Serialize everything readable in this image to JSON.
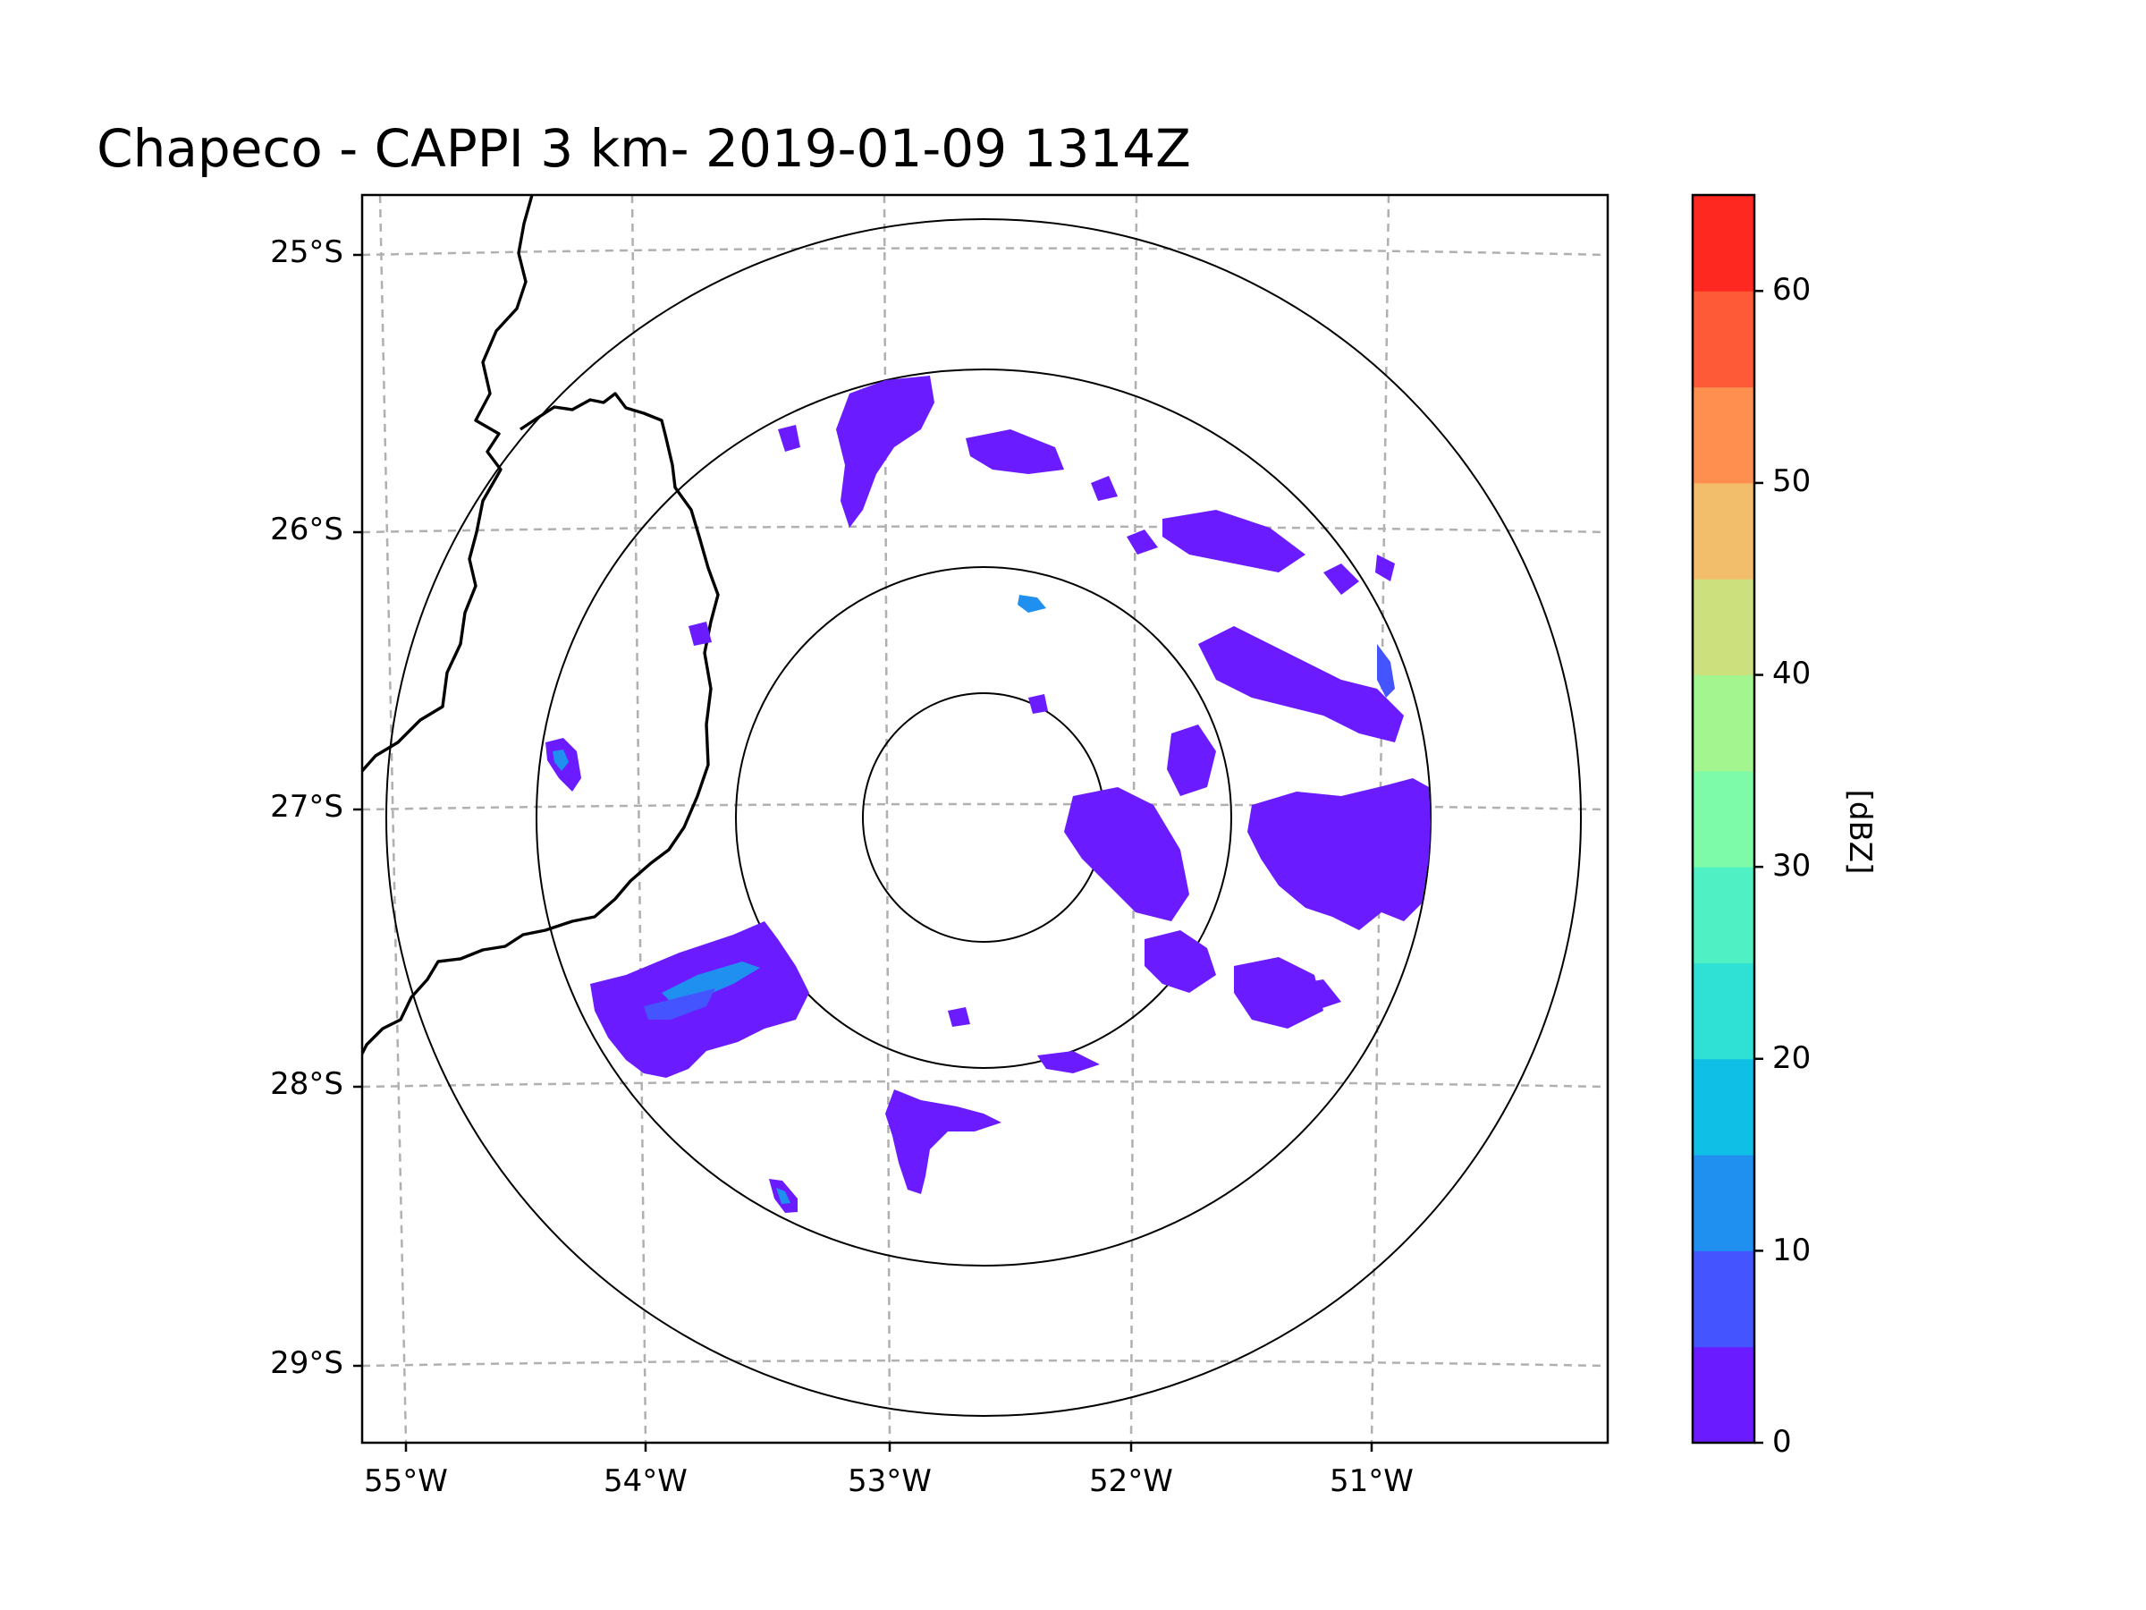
{
  "title": "Chapeco - CAPPI 3 km- 2019-01-09 1314Z",
  "map": {
    "lat_ticks": [
      "25°S",
      "26°S",
      "27°S",
      "28°S",
      "29°S"
    ],
    "lon_ticks": [
      "55°W",
      "54°W",
      "53°W",
      "52°W",
      "51°W"
    ],
    "lat_range": [
      -29.3,
      -24.8
    ],
    "lon_range": [
      -55.2,
      -50.1
    ],
    "radar_site": {
      "name": "Chapeco",
      "lat": -27.03,
      "lon": -52.6
    },
    "range_rings_count": 4,
    "gridline_style": "dashed"
  },
  "colorbar": {
    "label": "[dBZ]",
    "ticks": [
      "0",
      "10",
      "20",
      "30",
      "40",
      "50",
      "60"
    ],
    "min": 0,
    "max": 65,
    "step": 5,
    "colors": [
      "#6a1bff",
      "#4455ff",
      "#1f90f0",
      "#10bfe6",
      "#2fe0d5",
      "#4ff0c3",
      "#7dfba8",
      "#a3f58f",
      "#cce07e",
      "#f2be6b",
      "#ff8f4f",
      "#ff5a37",
      "#ff2820"
    ]
  },
  "colors": {
    "border": "#000000",
    "grid": "#b0b0b0"
  }
}
